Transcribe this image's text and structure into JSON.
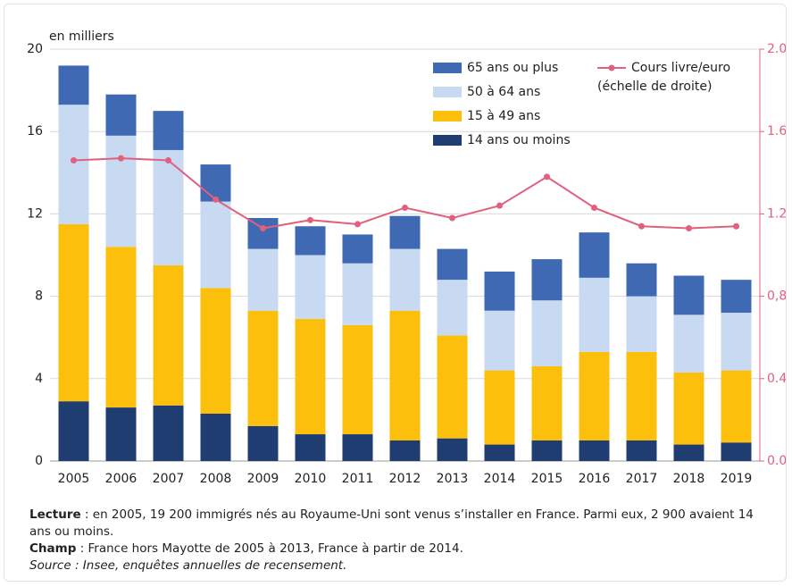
{
  "chart_data": {
    "type": "stacked_bar_line",
    "y_label": "en milliers",
    "categories": [
      "2005",
      "2006",
      "2007",
      "2008",
      "2009",
      "2010",
      "2011",
      "2012",
      "2013",
      "2014",
      "2015",
      "2016",
      "2017",
      "2018",
      "2019"
    ],
    "series": [
      {
        "name": "14 ans ou moins",
        "color": "#1f3d70",
        "values": [
          2.9,
          2.6,
          2.7,
          2.3,
          1.7,
          1.3,
          1.3,
          1.0,
          1.1,
          0.8,
          1.0,
          1.0,
          1.0,
          0.8,
          0.9
        ]
      },
      {
        "name": "15 à 49 ans",
        "color": "#fbbf0c",
        "values": [
          8.6,
          7.8,
          6.8,
          6.1,
          5.6,
          5.6,
          5.3,
          6.3,
          5.0,
          3.6,
          3.6,
          4.3,
          4.3,
          3.5,
          3.5
        ]
      },
      {
        "name": "50 à 64 ans",
        "color": "#c7daf2",
        "values": [
          5.8,
          5.4,
          5.6,
          4.2,
          3.0,
          3.1,
          3.0,
          3.0,
          2.7,
          2.9,
          3.2,
          3.6,
          2.7,
          2.8,
          2.8
        ]
      },
      {
        "name": "65 ans ou plus",
        "color": "#3f69b3",
        "values": [
          1.9,
          2.0,
          1.9,
          1.8,
          1.5,
          1.4,
          1.4,
          1.6,
          1.5,
          1.9,
          2.0,
          2.2,
          1.6,
          1.9,
          1.6
        ]
      },
      {
        "name": "Cours livre/euro",
        "legend_note": "(échelle de droite)",
        "color": "#e0607e",
        "axis": "y2",
        "type": "line",
        "values": [
          1.46,
          1.47,
          1.46,
          1.27,
          1.13,
          1.17,
          1.15,
          1.23,
          1.18,
          1.24,
          1.38,
          1.23,
          1.14,
          1.13,
          1.14
        ]
      }
    ],
    "ylim": [
      0,
      20
    ],
    "yticks": [
      0,
      4,
      8,
      12,
      16,
      20
    ],
    "y2lim": [
      0,
      2
    ],
    "y2ticks": [
      {
        "value": 0,
        "label": "0.0"
      },
      {
        "value": 0.4,
        "label": "0.4"
      },
      {
        "value": 0.8,
        "label": "0,8"
      },
      {
        "value": 1.2,
        "label": "1.2"
      },
      {
        "value": 1.6,
        "label": "1.6"
      },
      {
        "value": 2,
        "label": "2.0"
      }
    ],
    "grid": true
  },
  "notes": [
    {
      "label": "Lecture",
      "text": " : en 2005, 19 200 immigrés nés au Royaume-Uni sont venus s’installer en France. Parmi eux, 2 900 avaient 14 ans ou moins."
    },
    {
      "label": "Champ",
      "text": " : France hors Mayotte de 2005 à 2013, France à partir de 2014."
    }
  ],
  "source": "Source : Insee, enquêtes annuelles de recensement."
}
